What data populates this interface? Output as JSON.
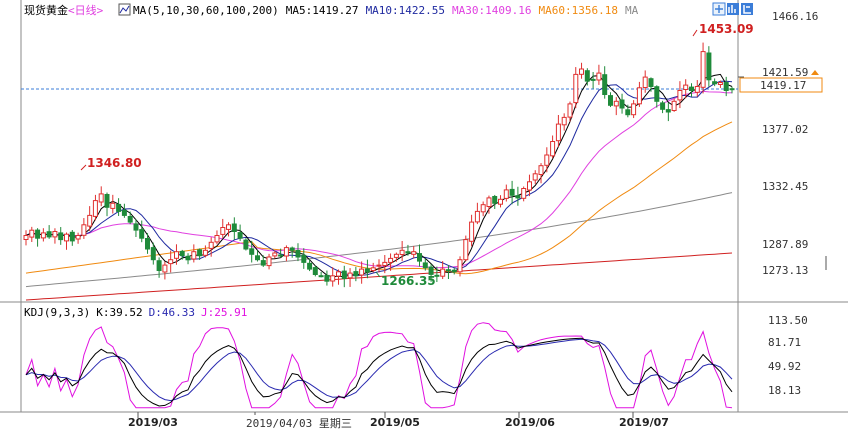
{
  "header": {
    "instrument": "现货黄金",
    "period": "<日线>",
    "ma_params": "MA(5,10,30,60,100,200)",
    "ma5": "MA5:1419.27",
    "ma10": "MA10:1422.55",
    "ma30": "MA30:1409.16",
    "ma60": "MA60:1356.18",
    "ma_tail": "MA"
  },
  "kdj_header": {
    "params": "KDJ(9,3,3)",
    "k": "K:39.52",
    "d": "D:46.33",
    "j": "J:25.91"
  },
  "colors": {
    "up": "#e0302f",
    "down": "#1f8a3a",
    "ma5": "#000000",
    "ma10": "#1f2aa0",
    "ma30": "#e040e0",
    "ma60": "#f08a10",
    "ma100": "#8a8a8a",
    "ma200": "#d02020",
    "k": "#000000",
    "d": "#2a2ab0",
    "j": "#e010e0",
    "current": "#3b7dd8"
  },
  "price_axis": {
    "ticks": [
      "1466.16",
      "1421.59",
      "1377.02",
      "1332.45",
      "1287.89",
      "1273.13"
    ],
    "current_price": "1419.17"
  },
  "kdj_axis": {
    "ticks": [
      "113.50",
      "81.71",
      "49.92",
      "18.13"
    ]
  },
  "annotations": {
    "high_recent": "1453.09",
    "high_early": "1346.80",
    "low": "1266.35"
  },
  "date_axis": {
    "labels": [
      "2019/03",
      "2019/05",
      "2019/06",
      "2019/07"
    ],
    "cursor": "2019/04/03 星期三"
  },
  "chart_data": [
    {
      "type": "candlestick",
      "title": "现货黄金 <日线>",
      "ylim": [
        1262,
        1472
      ],
      "y_ticks": [
        1466.16,
        1421.59,
        1377.02,
        1332.45,
        1287.89
      ],
      "grid": false,
      "close": [
        1310,
        1314,
        1308,
        1312,
        1309,
        1313,
        1307,
        1311,
        1306,
        1310,
        1318,
        1325,
        1336,
        1341,
        1331,
        1334,
        1328,
        1325,
        1320,
        1314,
        1308,
        1300,
        1292,
        1284,
        1288,
        1292,
        1298,
        1295,
        1292,
        1298,
        1295,
        1299,
        1305,
        1310,
        1316,
        1318,
        1313,
        1308,
        1300,
        1296,
        1292,
        1288,
        1294,
        1297,
        1295,
        1301,
        1299,
        1294,
        1290,
        1285,
        1281,
        1280,
        1276,
        1280,
        1283,
        1278,
        1282,
        1280,
        1285,
        1283,
        1286,
        1288,
        1290,
        1293,
        1296,
        1299,
        1297,
        1298,
        1291,
        1286,
        1281,
        1280,
        1285,
        1284,
        1283,
        1292,
        1307,
        1320,
        1328,
        1333,
        1338,
        1334,
        1337,
        1344,
        1340,
        1338,
        1345,
        1350,
        1356,
        1362,
        1370,
        1380,
        1393,
        1398,
        1408,
        1430,
        1434,
        1425,
        1426,
        1431,
        1415,
        1407,
        1410,
        1405,
        1400,
        1408,
        1420,
        1428,
        1421,
        1410,
        1404,
        1402,
        1410,
        1418,
        1422,
        1418,
        1421,
        1447,
        1426,
        1423,
        1424,
        1418,
        1419
      ],
      "ma5_end": 1419.27,
      "ma10_end": 1422.55,
      "ma30_end": 1409.16,
      "ma60_end": 1356.18,
      "high_label": 1453.09,
      "early_high_label": 1346.8,
      "low_label": 1266.35,
      "last_price": 1419.17
    },
    {
      "type": "line",
      "title": "KDJ(9,3,3)",
      "ylim": [
        5,
        120
      ],
      "y_ticks": [
        113.5,
        81.71,
        49.92,
        18.13
      ],
      "series": [
        {
          "name": "K",
          "last": 39.52
        },
        {
          "name": "D",
          "last": 46.33
        },
        {
          "name": "J",
          "last": 25.91
        }
      ]
    }
  ]
}
